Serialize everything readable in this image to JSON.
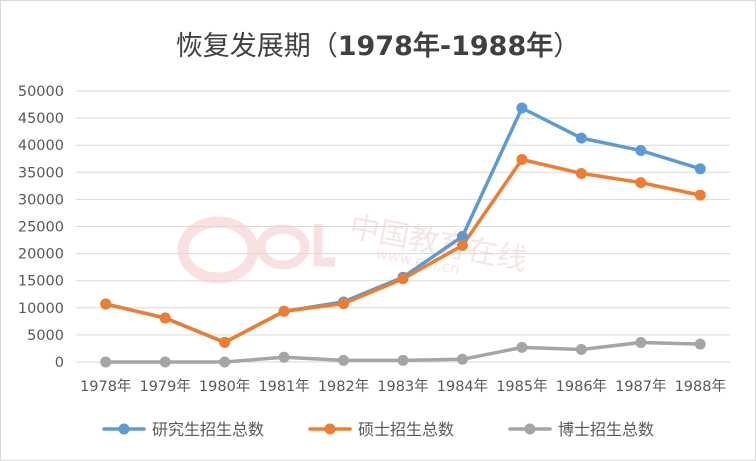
{
  "chart_data": {
    "type": "line",
    "title": "恢复发展期（",
    "title_years": "1978年-1988年",
    "title_close": "）",
    "categories": [
      "1978年",
      "1979年",
      "1980年",
      "1981年",
      "1982年",
      "1983年",
      "1984年",
      "1985年",
      "1986年",
      "1987年",
      "1988年"
    ],
    "series": [
      {
        "name": "研究生招生总数",
        "color": "#5b9bd5",
        "values": [
          10708,
          8110,
          3616,
          9363,
          11080,
          15642,
          23181,
          46871,
          41310,
          39017,
          35645
        ]
      },
      {
        "name": "硕士招生总数",
        "color": "#ed7d31",
        "values": [
          10708,
          8110,
          3616,
          9363,
          10778,
          15351,
          21487,
          37370,
          34790,
          33100,
          30800
        ]
      },
      {
        "name": "博士招生总数",
        "color": "#a5a5a5",
        "values": [
          0,
          0,
          0,
          868,
          302,
          291,
          500,
          2700,
          2300,
          3600,
          3300
        ]
      }
    ],
    "ylim": [
      0,
      50000
    ],
    "yticks": [
      "0",
      "5000",
      "10000",
      "15000",
      "20000",
      "25000",
      "30000",
      "35000",
      "40000",
      "45000",
      "50000"
    ],
    "grid": true,
    "legend_position": "bottom",
    "xlabel": "",
    "ylabel": ""
  },
  "watermark": {
    "text1": "中国教育在线",
    "text2": "www.eol.cn",
    "logo": "eol"
  },
  "colors": {
    "gridline": "#d9d9d9",
    "axis_text": "#595959",
    "title": "#404040"
  }
}
